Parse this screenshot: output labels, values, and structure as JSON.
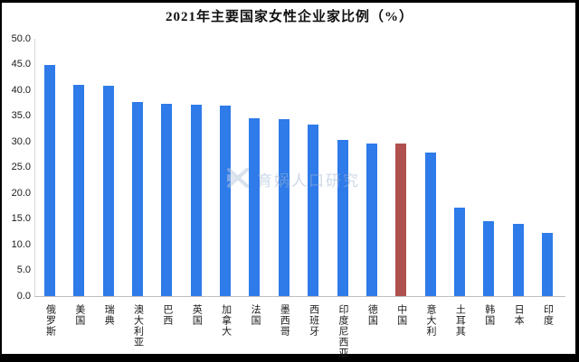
{
  "title": "2021年主要国家女性企业家比例（%）",
  "watermark": {
    "logo_icon": "yuwa-logo-icon",
    "text": "育娲人口研究",
    "color": "#9fb4d2"
  },
  "colors": {
    "bar_blue": "#2e7be9",
    "bar_red": "#b0504e",
    "axis_gray": "#bfbfbf",
    "text_dark": "#1a1a1a",
    "background": "#ffffff",
    "frame": "#000000"
  },
  "chart_data": {
    "type": "bar",
    "title": "2021年主要国家女性企业家比例（%）",
    "xlabel": "",
    "ylabel": "",
    "categories": [
      "俄罗斯",
      "美国",
      "瑞典",
      "澳大利亚",
      "巴西",
      "英国",
      "加拿大",
      "法国",
      "墨西哥",
      "西班牙",
      "印度尼西亚",
      "德国",
      "中国",
      "意大利",
      "土耳其",
      "韩国",
      "日本",
      "印度"
    ],
    "values": [
      44.9,
      41.0,
      40.9,
      37.8,
      37.3,
      37.2,
      37.1,
      34.6,
      34.4,
      33.3,
      30.4,
      29.6,
      29.7,
      27.9,
      17.2,
      14.5,
      14.1,
      12.3
    ],
    "bar_color": "#2e7be9",
    "highlight": {
      "category": "中国",
      "index": 12,
      "color": "#b0504e"
    },
    "ylim": [
      0,
      50
    ],
    "ytick_step": 5,
    "ytick_labels": [
      "50.0",
      "45.0",
      "40.0",
      "35.0",
      "30.0",
      "25.0",
      "20.0",
      "15.0",
      "10.0",
      "5.0",
      "0.0"
    ],
    "grid": false,
    "legend": "none",
    "data_labels": false
  }
}
